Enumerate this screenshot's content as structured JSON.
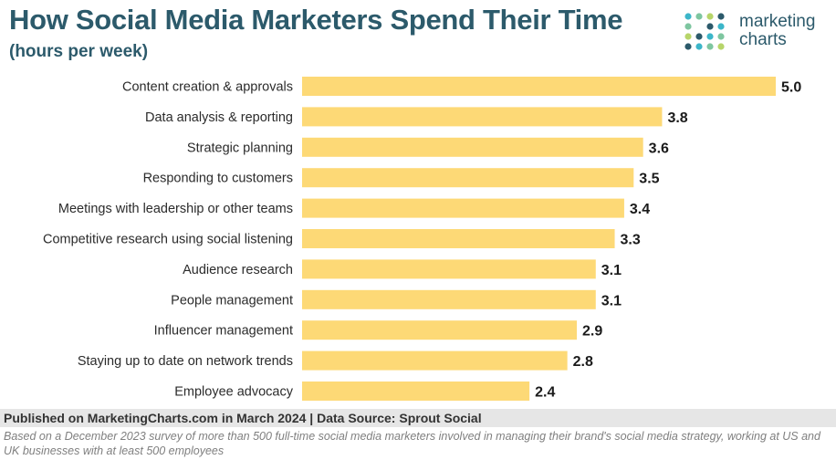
{
  "header": {
    "title": "How Social Media Marketers Spend Their Time",
    "subtitle": "(hours per week)"
  },
  "logo": {
    "line1": "marketing",
    "line2": "charts",
    "dot_colors": [
      "#3cb6c9",
      "#7ec6a0",
      "#b7d56a",
      "#2c5a6b"
    ]
  },
  "colors": {
    "bar": "#fdd976",
    "label": "#2b2b2b",
    "value": "#1a1a1a",
    "title": "#2c5a6b"
  },
  "chart_data": {
    "type": "bar",
    "orientation": "horizontal",
    "categories": [
      "Content creation & approvals",
      "Data analysis & reporting",
      "Strategic planning",
      "Responding to customers",
      "Meetings with leadership or other teams",
      "Competitive research using social listening",
      "Audience research",
      "People management",
      "Influencer management",
      "Staying up to date on network trends",
      "Employee advocacy"
    ],
    "values": [
      5.0,
      3.8,
      3.6,
      3.5,
      3.4,
      3.3,
      3.1,
      3.1,
      2.9,
      2.8,
      2.4
    ],
    "value_labels": [
      "5.0",
      "3.8",
      "3.6",
      "3.5",
      "3.4",
      "3.3",
      "3.1",
      "3.1",
      "2.9",
      "2.8",
      "2.4"
    ],
    "title": "How Social Media Marketers Spend Their Time",
    "subtitle": "(hours per week)",
    "xlabel": "",
    "ylabel": "",
    "xlim": [
      0,
      5.0
    ],
    "grid": false,
    "legend": "none"
  },
  "footer": {
    "published": "Published on MarketingCharts.com in March 2024 | Data Source: Sprout Social",
    "note": "Based on a December 2023 survey of more than 500 full-time social media marketers involved in managing their brand's social media strategy, working at US and UK businesses with at least 500 employees"
  }
}
